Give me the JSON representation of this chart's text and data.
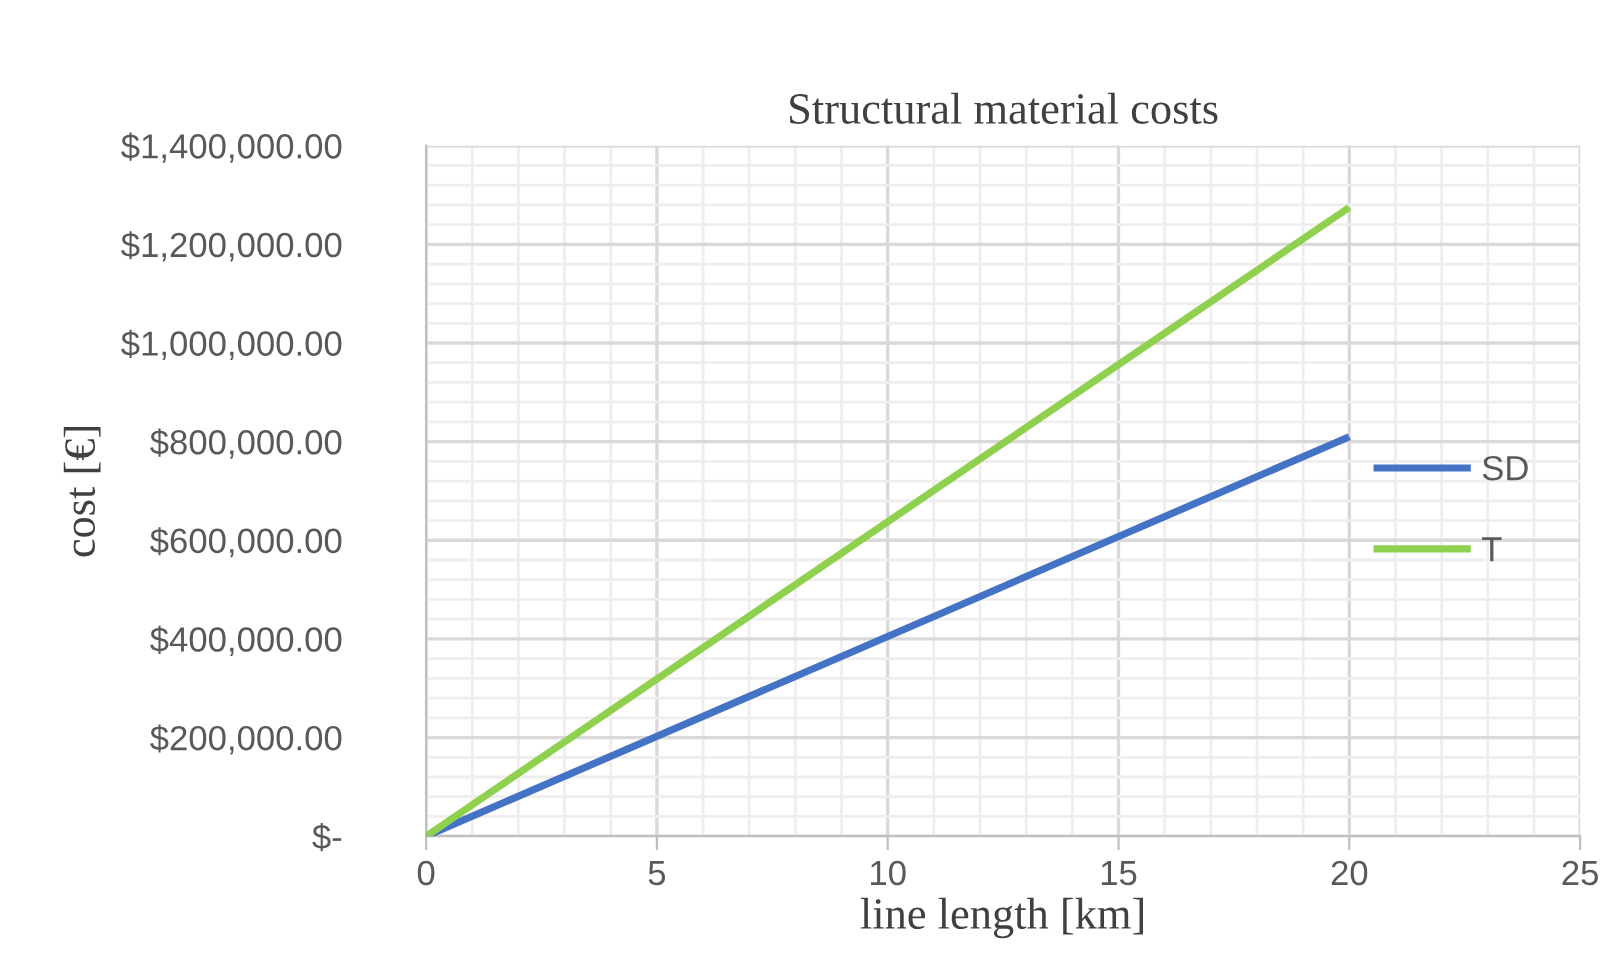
{
  "chart_data": {
    "type": "line",
    "title": "Structural material costs",
    "xlabel": "line length [km]",
    "ylabel": "cost [€]",
    "x": [
      0,
      20
    ],
    "series": [
      {
        "name": "SD",
        "color": "#4472c4",
        "values": [
          0,
          810000
        ]
      },
      {
        "name": "T",
        "color": "#8fd14f",
        "values": [
          0,
          1275000
        ]
      }
    ],
    "xlim": [
      0,
      25
    ],
    "xticks": [
      0,
      5,
      10,
      15,
      20,
      25
    ],
    "ylim": [
      0,
      1400000
    ],
    "yticks": [
      {
        "value": 0,
        "label": "$-"
      },
      {
        "value": 200000,
        "label": "$200,000.00"
      },
      {
        "value": 400000,
        "label": "$400,000.00"
      },
      {
        "value": 600000,
        "label": "$600,000.00"
      },
      {
        "value": 800000,
        "label": "$800,000.00"
      },
      {
        "value": 1000000,
        "label": "$1,000,000.00"
      },
      {
        "value": 1200000,
        "label": "$1,200,000.00"
      },
      {
        "value": 1400000,
        "label": "$1,400,000.00"
      }
    ],
    "grid": true,
    "legend": "right",
    "marker": "none",
    "line_style": "solid"
  }
}
